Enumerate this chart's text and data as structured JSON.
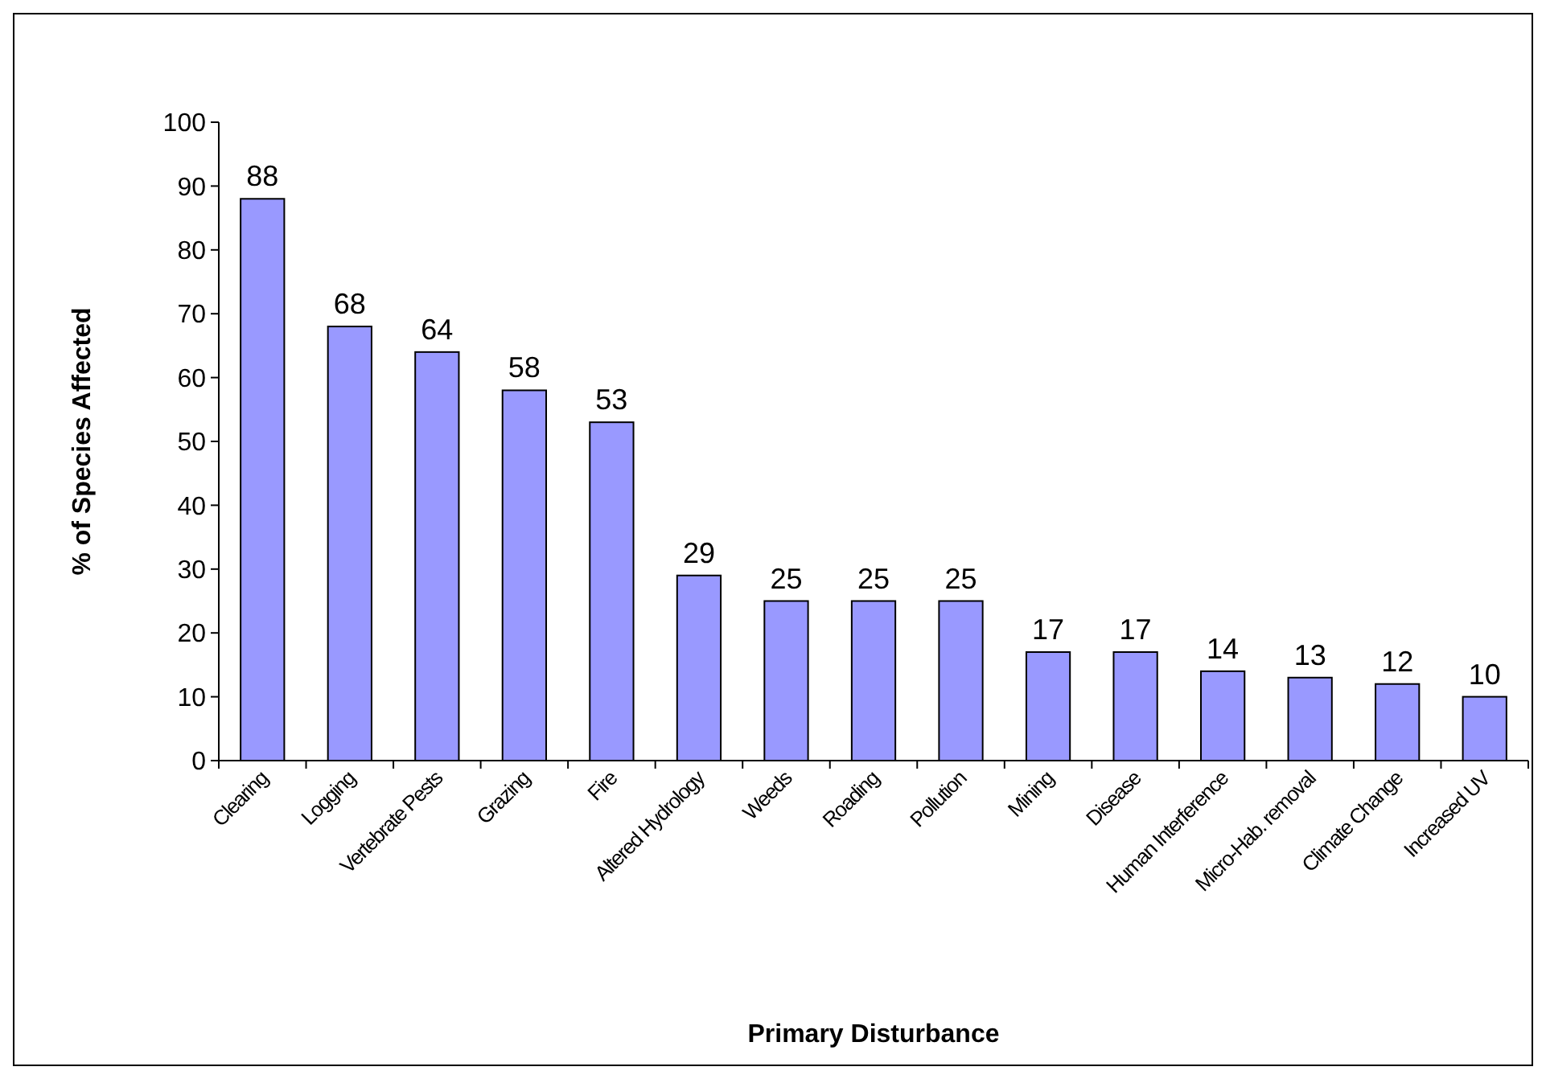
{
  "chart_data": {
    "type": "bar",
    "xlabel": "Primary Disturbance",
    "ylabel": "% of Species Affected",
    "categories": [
      "Clearing",
      "Logging",
      "Vertebrate Pests",
      "Grazing",
      "Fire",
      "Altered Hydrology",
      "Weeds",
      "Roading",
      "Pollution",
      "Mining",
      "Disease",
      "Human Interference",
      "Micro-Hab. removal",
      "Climate Change",
      "Increased UV"
    ],
    "values": [
      88,
      68,
      64,
      58,
      53,
      29,
      25,
      25,
      25,
      17,
      17,
      14,
      13,
      12,
      10
    ],
    "color": "#9999ff",
    "ylim": [
      0,
      100
    ],
    "yticks": [
      0,
      10,
      20,
      30,
      40,
      50,
      60,
      70,
      80,
      90,
      100
    ],
    "grid": false,
    "data_labels": true
  }
}
